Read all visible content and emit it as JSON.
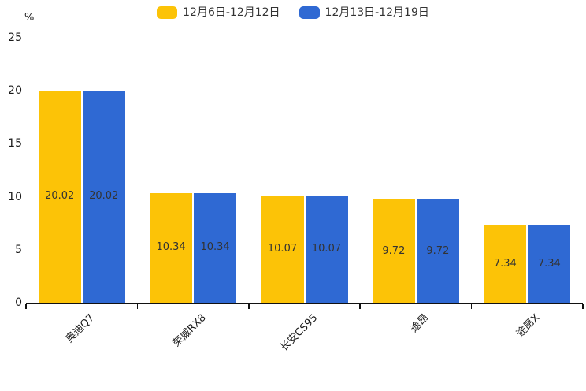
{
  "chart_data": {
    "type": "bar",
    "title": "",
    "xlabel": "",
    "ylabel": "%",
    "categories": [
      "奥迪Q7",
      "荣威RX8",
      "长安CS95",
      "途昂",
      "途昂X"
    ],
    "series": [
      {
        "name": "12月6日-12月12日",
        "color": "#FCC307",
        "values": [
          20.02,
          10.34,
          10.07,
          9.72,
          7.34
        ]
      },
      {
        "name": "12月13日-12月19日",
        "color": "#2F69D3",
        "values": [
          20.02,
          10.34,
          10.07,
          9.72,
          7.34
        ]
      }
    ],
    "ylim": [
      0,
      25
    ],
    "yticks": [
      0,
      5,
      10,
      15,
      20,
      25
    ],
    "grid": false,
    "legend_position": "top",
    "value_labels": "inside-center",
    "value_label_color": "#333333",
    "axis_color": "#111111"
  }
}
